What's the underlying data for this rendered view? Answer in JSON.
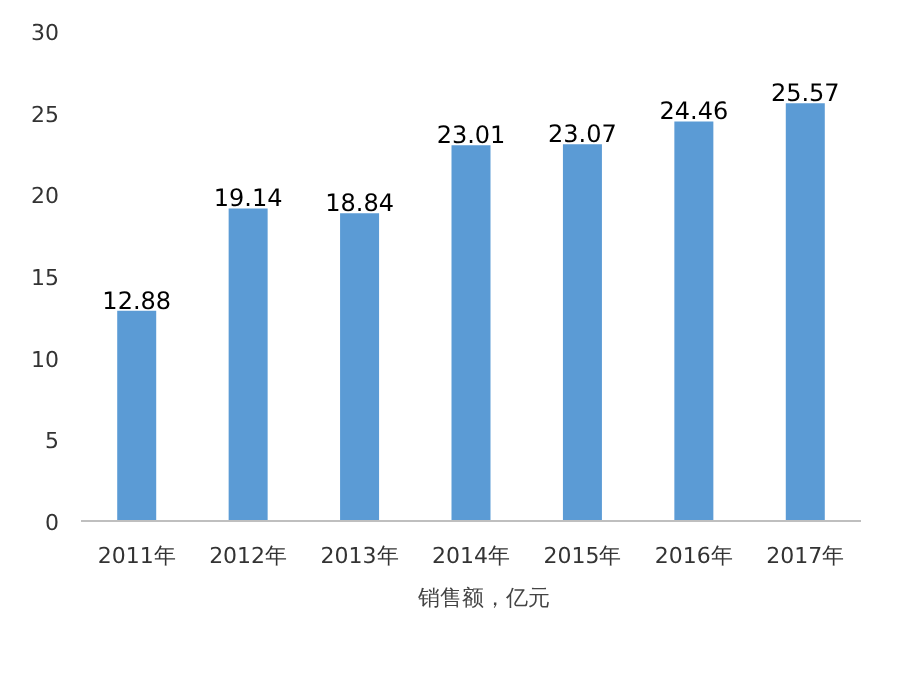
{
  "chart_data": {
    "type": "bar",
    "categories": [
      "2011年",
      "2012年",
      "2013年",
      "2014年",
      "2015年",
      "2016年",
      "2017年"
    ],
    "series": [
      {
        "name": "销售额，亿元",
        "color": "#5b9bd5",
        "values": [
          12.88,
          19.14,
          18.84,
          23.01,
          23.07,
          24.46,
          25.57
        ]
      }
    ],
    "ylim": [
      0,
      30
    ],
    "yticks": [
      0,
      5,
      10,
      15,
      20,
      25,
      30
    ],
    "data_labels": true,
    "legend": "bottom"
  }
}
